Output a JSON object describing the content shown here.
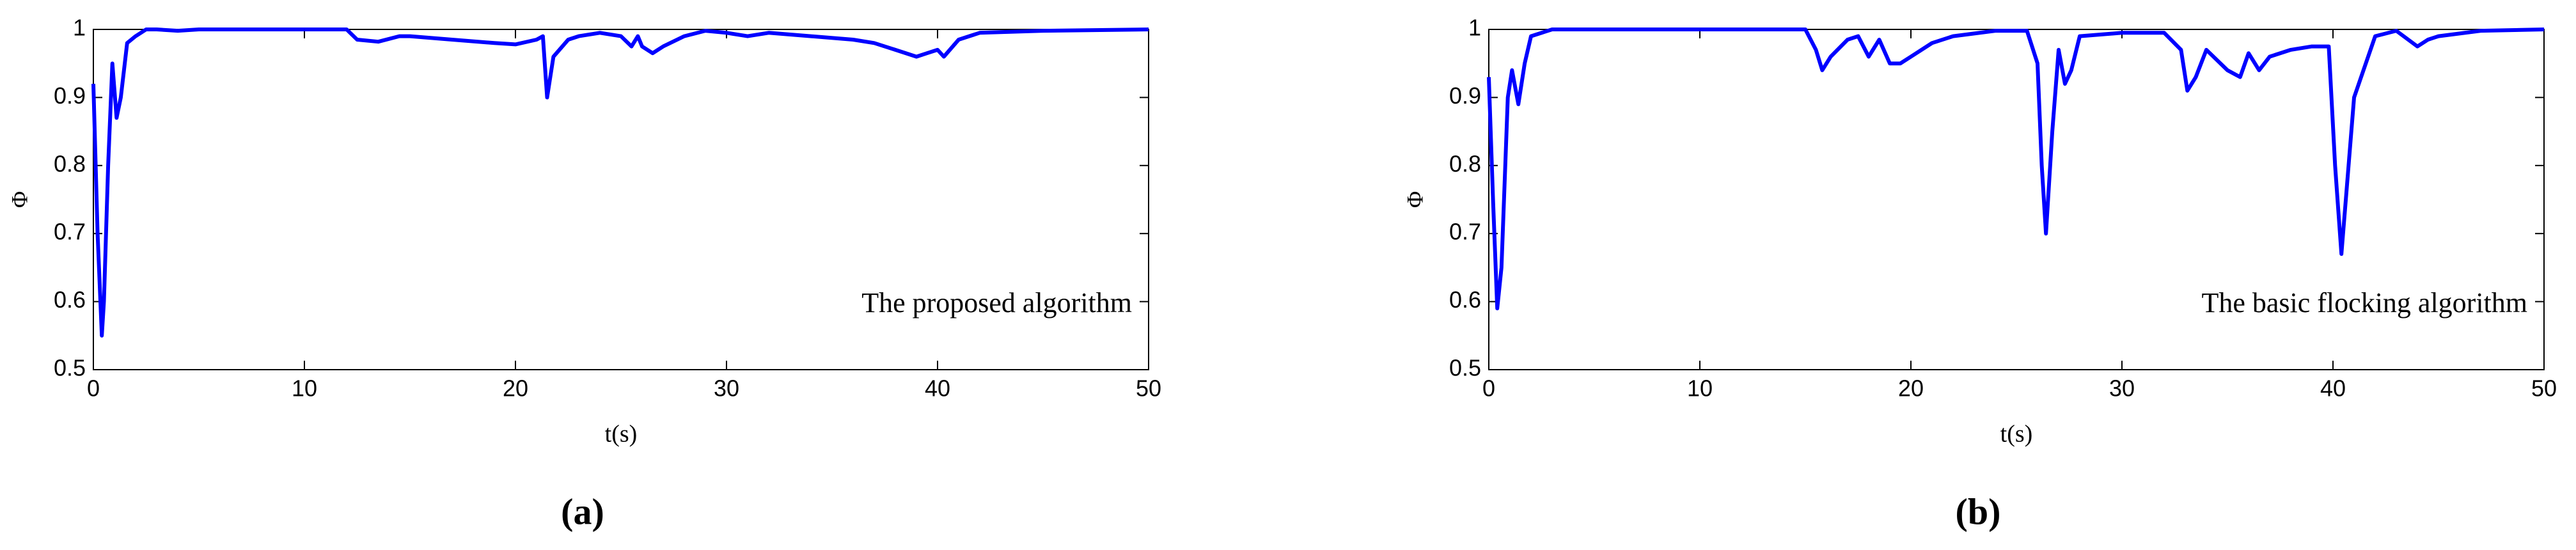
{
  "chart_data": [
    {
      "type": "line",
      "annotation": "The proposed algorithm",
      "x_label": "t(s)",
      "y_label": "Φ",
      "caption": "(a)",
      "color": "#0000ff",
      "x": [
        0,
        0.2,
        0.4,
        0.5,
        0.7,
        0.9,
        1.1,
        1.3,
        1.6,
        2,
        2.5,
        3,
        4,
        5,
        8,
        12,
        12.5,
        13.5,
        14.5,
        15,
        17,
        19,
        20,
        21,
        21.3,
        21.5,
        21.8,
        22.5,
        23,
        24,
        25,
        25.5,
        25.8,
        26,
        26.5,
        27,
        28,
        29,
        30,
        31,
        32,
        34,
        36,
        37,
        38,
        39,
        39.5,
        40,
        40.3,
        41,
        42,
        45,
        50
      ],
      "values": [
        0.92,
        0.7,
        0.55,
        0.6,
        0.8,
        0.95,
        0.87,
        0.9,
        0.98,
        0.99,
        1,
        1,
        0.998,
        1,
        1,
        1,
        0.985,
        0.982,
        0.99,
        0.99,
        0.985,
        0.98,
        0.978,
        0.985,
        0.99,
        0.9,
        0.96,
        0.985,
        0.99,
        0.995,
        0.99,
        0.975,
        0.99,
        0.975,
        0.965,
        0.975,
        0.99,
        0.998,
        0.995,
        0.99,
        0.995,
        0.99,
        0.985,
        0.98,
        0.97,
        0.96,
        0.965,
        0.97,
        0.96,
        0.985,
        0.995,
        0.998,
        1
      ],
      "xlim": [
        0,
        50
      ],
      "xticks": [
        0,
        10,
        20,
        30,
        40,
        50
      ],
      "ylim": [
        0.5,
        1
      ],
      "yticks": [
        0.5,
        0.6,
        0.7,
        0.8,
        0.9,
        1
      ],
      "grid": false
    },
    {
      "type": "line",
      "annotation": "The basic flocking algorithm",
      "x_label": "t(s)",
      "y_label": "Φ",
      "caption": "(b)",
      "color": "#0000ff",
      "x": [
        0,
        0.2,
        0.4,
        0.6,
        0.9,
        1.1,
        1.4,
        1.7,
        2,
        3,
        5,
        15,
        15.5,
        15.8,
        16.2,
        17,
        17.5,
        18,
        18.5,
        19,
        19.5,
        20,
        21,
        22,
        24,
        25.5,
        26,
        26.2,
        26.4,
        26.7,
        27,
        27.3,
        27.6,
        28,
        30,
        32,
        32.8,
        33.1,
        33.5,
        34,
        35,
        35.6,
        36,
        36.5,
        37,
        38,
        39,
        39.8,
        40.1,
        40.4,
        41,
        42,
        43,
        44,
        44.5,
        45,
        47,
        50
      ],
      "values": [
        0.93,
        0.75,
        0.59,
        0.65,
        0.9,
        0.94,
        0.89,
        0.95,
        0.99,
        1,
        1,
        1,
        0.97,
        0.94,
        0.96,
        0.985,
        0.99,
        0.96,
        0.985,
        0.95,
        0.95,
        0.96,
        0.98,
        0.99,
        0.998,
        0.998,
        0.95,
        0.8,
        0.7,
        0.85,
        0.97,
        0.92,
        0.94,
        0.99,
        0.995,
        0.995,
        0.97,
        0.91,
        0.93,
        0.97,
        0.94,
        0.93,
        0.965,
        0.94,
        0.96,
        0.97,
        0.975,
        0.975,
        0.8,
        0.67,
        0.9,
        0.99,
        0.998,
        0.975,
        0.985,
        0.99,
        0.998,
        1
      ],
      "xlim": [
        0,
        50
      ],
      "xticks": [
        0,
        10,
        20,
        30,
        40,
        50
      ],
      "ylim": [
        0.5,
        1
      ],
      "yticks": [
        0.5,
        0.6,
        0.7,
        0.8,
        0.9,
        1
      ],
      "grid": false
    }
  ]
}
